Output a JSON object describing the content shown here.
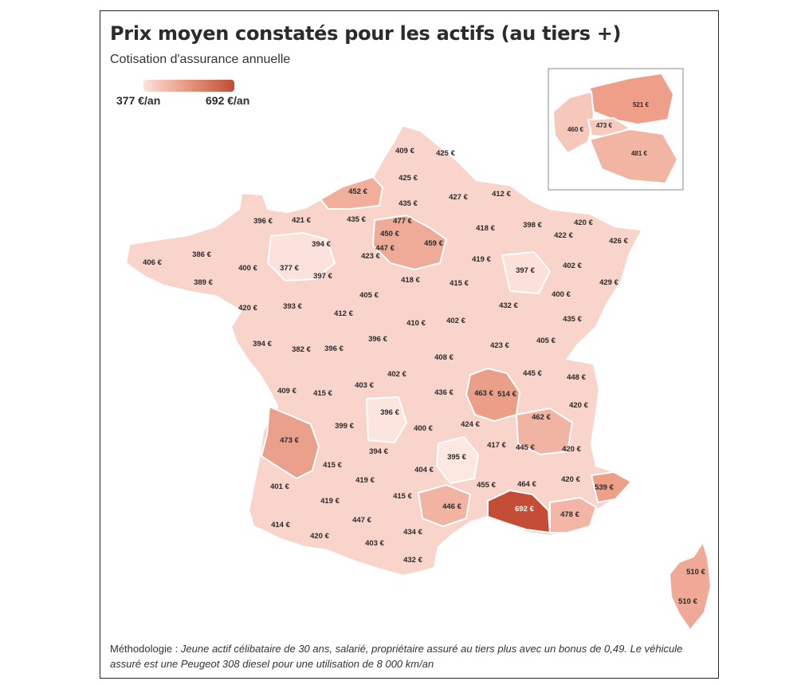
{
  "title": "Prix moyen constatés pour les actifs (au tiers +)",
  "subtitle": "Cotisation d'assurance annuelle",
  "legend": {
    "min_label": "377 €/an",
    "max_label": "692 €/an",
    "min_value": 377,
    "max_value": 692,
    "color_low": "#fce2dc",
    "color_high": "#c04d33"
  },
  "methodology": {
    "prefix": "Méthodologie : ",
    "text": "Jeune actif célibataire de 30 ans, salarié, propriétaire assuré au tiers plus avec un bonus de 0,49. Le véhicule assuré est une Peugeot 308 diesel pour une utilisation de 8 000 km/an"
  },
  "departments": [
    {
      "label": "409 €",
      "value": 409
    },
    {
      "label": "425 €",
      "value": 425
    },
    {
      "label": "425 €",
      "value": 425
    },
    {
      "label": "452 €",
      "value": 452
    },
    {
      "label": "435 €",
      "value": 435
    },
    {
      "label": "427 €",
      "value": 427
    },
    {
      "label": "412 €",
      "value": 412
    },
    {
      "label": "396 €",
      "value": 396
    },
    {
      "label": "421 €",
      "value": 421
    },
    {
      "label": "435 €",
      "value": 435
    },
    {
      "label": "477 €",
      "value": 477
    },
    {
      "label": "450 €",
      "value": 450
    },
    {
      "label": "418 €",
      "value": 418
    },
    {
      "label": "398 €",
      "value": 398
    },
    {
      "label": "420 €",
      "value": 420
    },
    {
      "label": "422 €",
      "value": 422
    },
    {
      "label": "426 €",
      "value": 426
    },
    {
      "label": "394 €",
      "value": 394
    },
    {
      "label": "447 €",
      "value": 447
    },
    {
      "label": "459 €",
      "value": 459
    },
    {
      "label": "406 €",
      "value": 406
    },
    {
      "label": "386 €",
      "value": 386
    },
    {
      "label": "400 €",
      "value": 400
    },
    {
      "label": "377 €",
      "value": 377
    },
    {
      "label": "423 €",
      "value": 423
    },
    {
      "label": "419 €",
      "value": 419
    },
    {
      "label": "402 €",
      "value": 402
    },
    {
      "label": "397 €",
      "value": 397
    },
    {
      "label": "389 €",
      "value": 389
    },
    {
      "label": "397 €",
      "value": 397
    },
    {
      "label": "418 €",
      "value": 418
    },
    {
      "label": "415 €",
      "value": 415
    },
    {
      "label": "429 €",
      "value": 429
    },
    {
      "label": "405 €",
      "value": 405
    },
    {
      "label": "400 €",
      "value": 400
    },
    {
      "label": "420 €",
      "value": 420
    },
    {
      "label": "393 €",
      "value": 393
    },
    {
      "label": "412 €",
      "value": 412
    },
    {
      "label": "432 €",
      "value": 432
    },
    {
      "label": "410 €",
      "value": 410
    },
    {
      "label": "402 €",
      "value": 402
    },
    {
      "label": "435 €",
      "value": 435
    },
    {
      "label": "394 €",
      "value": 394
    },
    {
      "label": "382 €",
      "value": 382
    },
    {
      "label": "396 €",
      "value": 396
    },
    {
      "label": "396 €",
      "value": 396
    },
    {
      "label": "423 €",
      "value": 423
    },
    {
      "label": "405 €",
      "value": 405
    },
    {
      "label": "408 €",
      "value": 408
    },
    {
      "label": "402 €",
      "value": 402
    },
    {
      "label": "445 €",
      "value": 445
    },
    {
      "label": "448 €",
      "value": 448
    },
    {
      "label": "409 €",
      "value": 409
    },
    {
      "label": "415 €",
      "value": 415
    },
    {
      "label": "403 €",
      "value": 403
    },
    {
      "label": "436 €",
      "value": 436
    },
    {
      "label": "463 €",
      "value": 463
    },
    {
      "label": "514 €",
      "value": 514
    },
    {
      "label": "420 €",
      "value": 420
    },
    {
      "label": "396 €",
      "value": 396
    },
    {
      "label": "462 €",
      "value": 462
    },
    {
      "label": "473 €",
      "value": 473
    },
    {
      "label": "399 €",
      "value": 399
    },
    {
      "label": "400 €",
      "value": 400
    },
    {
      "label": "424 €",
      "value": 424
    },
    {
      "label": "417 €",
      "value": 417
    },
    {
      "label": "445 €",
      "value": 445
    },
    {
      "label": "420 €",
      "value": 420
    },
    {
      "label": "394 €",
      "value": 394
    },
    {
      "label": "395 €",
      "value": 395
    },
    {
      "label": "415 €",
      "value": 415
    },
    {
      "label": "404 €",
      "value": 404
    },
    {
      "label": "419 €",
      "value": 419
    },
    {
      "label": "455 €",
      "value": 455
    },
    {
      "label": "464 €",
      "value": 464
    },
    {
      "label": "420 €",
      "value": 420
    },
    {
      "label": "539 €",
      "value": 539
    },
    {
      "label": "401 €",
      "value": 401
    },
    {
      "label": "415 €",
      "value": 415
    },
    {
      "label": "419 €",
      "value": 419
    },
    {
      "label": "446 €",
      "value": 446
    },
    {
      "label": "692 €",
      "value": 692
    },
    {
      "label": "478 €",
      "value": 478
    },
    {
      "label": "447 €",
      "value": 447
    },
    {
      "label": "414 €",
      "value": 414
    },
    {
      "label": "434 €",
      "value": 434
    },
    {
      "label": "420 €",
      "value": 420
    },
    {
      "label": "403 €",
      "value": 403
    },
    {
      "label": "432 €",
      "value": 432
    },
    {
      "label": "510 €",
      "value": 510
    },
    {
      "label": "510 €",
      "value": 510
    }
  ],
  "inset_departments": [
    {
      "label": "521 €",
      "value": 521
    },
    {
      "label": "460 €",
      "value": 460
    },
    {
      "label": "473 €",
      "value": 473
    },
    {
      "label": "481 €",
      "value": 481
    }
  ]
}
